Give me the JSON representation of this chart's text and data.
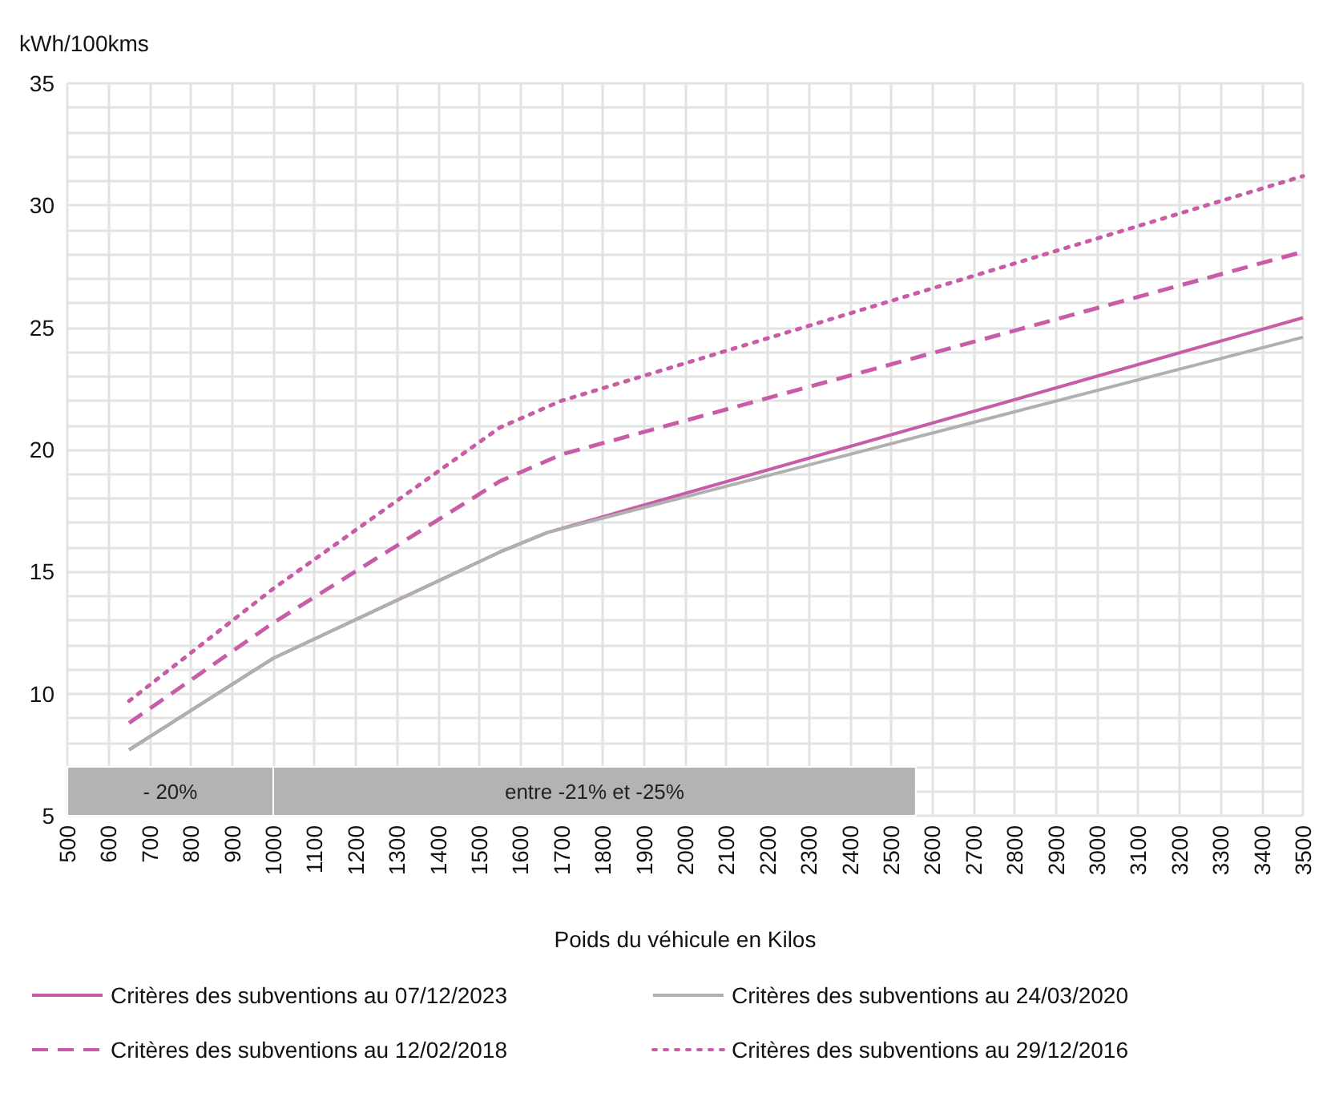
{
  "chart_data": {
    "type": "line",
    "xlabel": "Poids du véhicule en Kilos",
    "ylabel": "kWh/100kms",
    "xlim": [
      500,
      3500
    ],
    "xticks": [
      500,
      600,
      700,
      800,
      900,
      1000,
      1100,
      1200,
      1300,
      1400,
      1500,
      1600,
      1700,
      1800,
      1900,
      2000,
      2100,
      2200,
      2300,
      2400,
      2500,
      2600,
      2700,
      2800,
      2900,
      3000,
      3100,
      3200,
      3300,
      3400,
      3500
    ],
    "ylim": [
      5,
      35
    ],
    "yticks": [
      5,
      10,
      15,
      20,
      25,
      30,
      35
    ],
    "grid": true,
    "legend": "bottom",
    "marker": "none",
    "series": [
      {
        "name": "Critères des subventions au 07/12/2023",
        "color": "#c85ca6",
        "line_style": "solid",
        "x": [
          650,
          1000,
          1550,
          1665,
          3500
        ],
        "values": [
          7.7,
          11.45,
          15.8,
          16.6,
          25.4
        ]
      },
      {
        "name": "Critères des subventions au 24/03/2020",
        "color": "#b0b0b0",
        "line_style": "solid",
        "x": [
          650,
          1000,
          1550,
          1665,
          3500
        ],
        "values": [
          7.7,
          11.45,
          15.8,
          16.6,
          24.6
        ]
      },
      {
        "name": "Critères des subventions au 12/02/2018",
        "color": "#c85ca6",
        "line_style": "dashed",
        "x": [
          650,
          1000,
          1550,
          1700,
          3500
        ],
        "values": [
          8.8,
          12.9,
          18.7,
          19.8,
          28.1
        ]
      },
      {
        "name": "Critères des subventions au 29/12/2016",
        "color": "#c85ca6",
        "line_style": "dotted",
        "x": [
          650,
          1000,
          1550,
          1700,
          3500
        ],
        "values": [
          9.7,
          14.3,
          20.9,
          22.0,
          31.2
        ]
      }
    ],
    "bands": [
      {
        "axis": "x",
        "from": 500,
        "to": 1000,
        "label": "- 20%",
        "color": "#b3b3b3"
      },
      {
        "axis": "x",
        "from": 1000,
        "to": 2560,
        "label": "entre -21% et -25%",
        "color": "#b3b3b3"
      }
    ]
  }
}
